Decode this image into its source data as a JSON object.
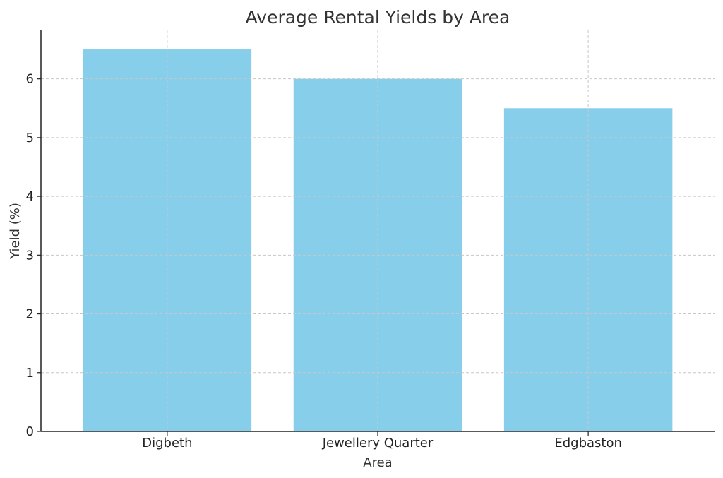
{
  "chart_data": {
    "type": "bar",
    "title": "Average Rental Yields by Area",
    "xlabel": "Area",
    "ylabel": "Yield (%)",
    "categories": [
      "Digbeth",
      "Jewellery Quarter",
      "Edgbaston"
    ],
    "values": [
      6.5,
      6.0,
      5.5
    ],
    "ylim": [
      0,
      6.825
    ],
    "yticks": [
      0,
      1,
      2,
      3,
      4,
      5,
      6
    ],
    "grid": true,
    "bar_color": "#87CEEB"
  }
}
